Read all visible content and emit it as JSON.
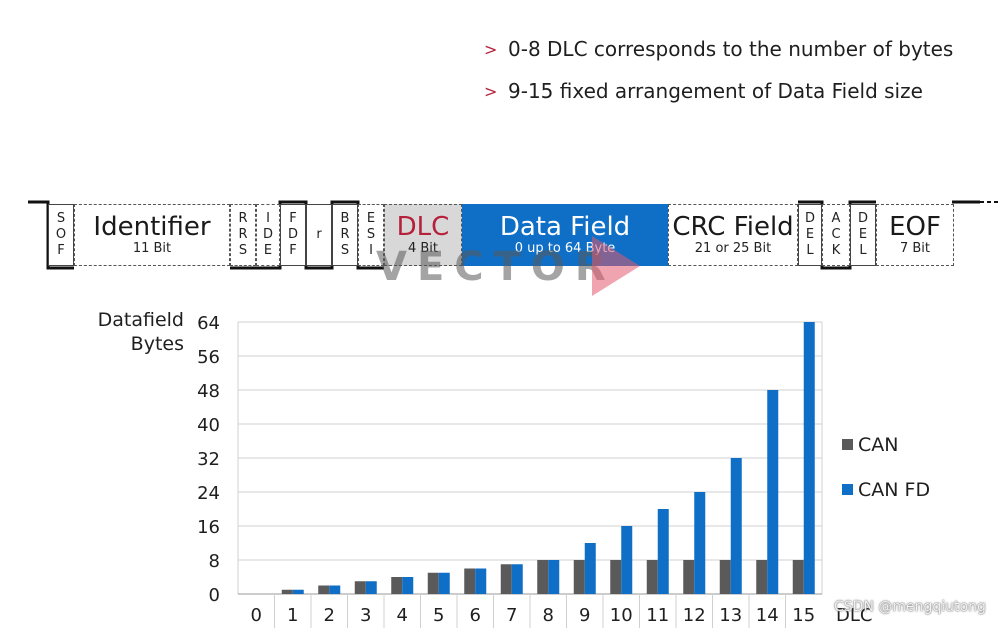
{
  "bullets": [
    {
      "marker": ">",
      "text": "0-8 DLC corresponds to the number of bytes"
    },
    {
      "marker": ">",
      "text": "9-15 fixed arrangement of Data Field size"
    }
  ],
  "frame": {
    "sof": "S\nO\nF",
    "identifier": {
      "title": "Identifier",
      "sub": "11 Bit"
    },
    "rrs": "R\nR\nS",
    "ide": "I\nD\nE",
    "fdf": "F\nD\nF",
    "r": "r",
    "brs": "B\nR\nS",
    "esi": "E\nS\nI",
    "dlc": {
      "title": "DLC",
      "sub": "4 Bit"
    },
    "data_field": {
      "title": "Data Field",
      "sub": "0 up to 64 Byte"
    },
    "crc_field": {
      "title": "CRC Field",
      "sub": "21 or 25 Bit"
    },
    "del1": "D\nE\nL",
    "ack": "A\nC\nK",
    "del2": "D\nE\nL",
    "eof": {
      "title": "EOF",
      "sub": "7 Bit"
    }
  },
  "watermark": "VECTOR",
  "credit": "CSDN @mengqiutong",
  "colors": {
    "can": "#5a5a5a",
    "canfd": "#0f6fc6",
    "accent": "#b5203a",
    "grid": "#d0d0d0"
  },
  "chart_data": {
    "type": "bar",
    "ylabel": "Datafield\nBytes",
    "xlabel": "DLC",
    "categories": [
      "0",
      "1",
      "2",
      "3",
      "4",
      "5",
      "6",
      "7",
      "8",
      "9",
      "10",
      "11",
      "12",
      "13",
      "14",
      "15"
    ],
    "series": [
      {
        "name": "CAN",
        "values": [
          0,
          1,
          2,
          3,
          4,
          5,
          6,
          7,
          8,
          8,
          8,
          8,
          8,
          8,
          8,
          8
        ]
      },
      {
        "name": "CAN FD",
        "values": [
          0,
          1,
          2,
          3,
          4,
          5,
          6,
          7,
          8,
          12,
          16,
          20,
          24,
          32,
          48,
          64
        ]
      }
    ],
    "yticks": [
      0,
      8,
      16,
      24,
      32,
      40,
      48,
      56,
      64
    ],
    "ylim": [
      0,
      64
    ],
    "grid": true,
    "legend": "right"
  }
}
